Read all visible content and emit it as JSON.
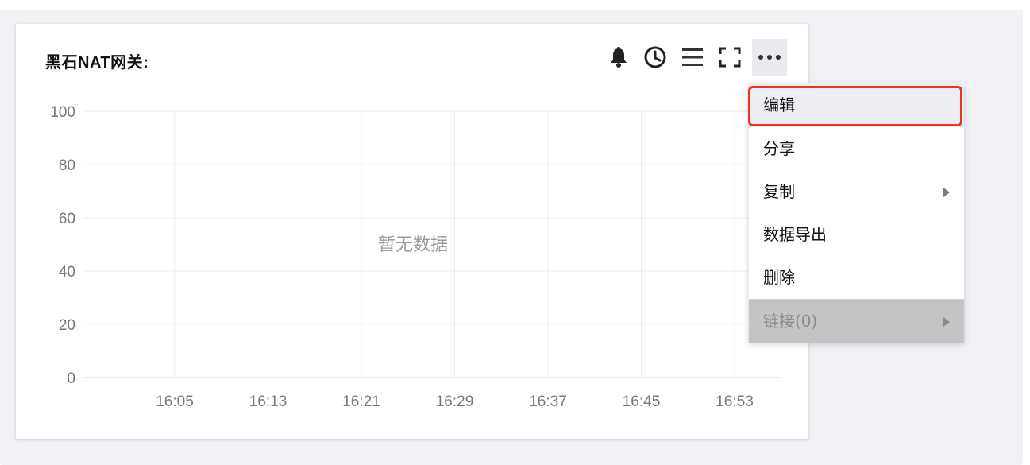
{
  "panel": {
    "title": "黑石NAT网关:"
  },
  "toolbar": {
    "icons": [
      "bell-icon",
      "clock-icon",
      "list-icon",
      "fullscreen-icon",
      "more-icon"
    ]
  },
  "chart_data": {
    "type": "line",
    "title": "",
    "xlabel": "",
    "ylabel": "",
    "x_ticks": [
      "16:05",
      "16:13",
      "16:21",
      "16:29",
      "16:37",
      "16:45",
      "16:53"
    ],
    "y_ticks": [
      "0",
      "20",
      "40",
      "60",
      "80",
      "100"
    ],
    "ylim": [
      0,
      100
    ],
    "grid": true,
    "series": [],
    "empty_text": "暂无数据"
  },
  "menu": {
    "items": [
      {
        "label": "编辑",
        "has_submenu": false
      },
      {
        "label": "分享",
        "has_submenu": false
      },
      {
        "label": "复制",
        "has_submenu": true
      },
      {
        "label": "数据导出",
        "has_submenu": false
      },
      {
        "label": "删除",
        "has_submenu": false
      },
      {
        "label": "链接(0)",
        "has_submenu": true
      }
    ]
  },
  "colors": {
    "highlight": "#f0331d",
    "grid": "#ececec",
    "axis_text": "#777777"
  }
}
